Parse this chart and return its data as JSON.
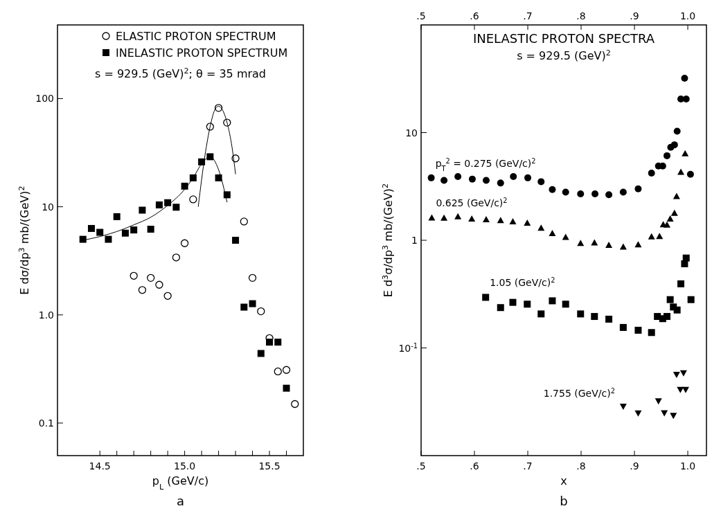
{
  "chart_data": [
    {
      "type": "scatter",
      "subtitle": "s = 929.5 (GeV)$^{2}$; θ = 35 mrad",
      "xlabel": "p$_{L}$ (GeV/c)",
      "ylabel": "E dσ/dp$^{3}$  mb/(GeV)$^{2}$",
      "log": "y",
      "grid": false,
      "legend": "top",
      "xlim": [
        14.25,
        15.7
      ],
      "ylim": [
        0.05,
        480
      ],
      "xticks": [
        {
          "value": 14.5,
          "label": "14.5"
        },
        {
          "value": 14.6,
          "label": null
        },
        {
          "value": 14.7,
          "label": null
        },
        {
          "value": 14.8,
          "label": null
        },
        {
          "value": 14.9,
          "label": null
        },
        {
          "value": 15.0,
          "label": "15.0"
        },
        {
          "value": 15.1,
          "label": null
        },
        {
          "value": 15.2,
          "label": null
        },
        {
          "value": 15.3,
          "label": null
        },
        {
          "value": 15.4,
          "label": null
        },
        {
          "value": 15.5,
          "label": "15.5"
        },
        {
          "value": 15.6,
          "label": null
        }
      ],
      "yticks": [
        0.1,
        {
          "value": 1,
          "label": "1.0"
        },
        10,
        100
      ],
      "annotations": [
        "a"
      ],
      "series": [
        {
          "name": "ELASTIC PROTON SPECTRUM",
          "marker": "circle-open",
          "color": "#000000",
          "x": [
            14.7,
            14.75,
            14.8,
            14.85,
            14.9,
            14.95,
            15.0,
            15.05,
            15.15,
            15.2,
            15.25,
            15.3,
            15.35,
            15.4,
            15.45,
            15.5,
            15.55,
            15.6,
            15.65
          ],
          "values": [
            2.3,
            1.7,
            2.2,
            1.9,
            1.5,
            3.4,
            4.6,
            11.7,
            55,
            82,
            60,
            28,
            7.3,
            2.2,
            1.08,
            0.61,
            0.3,
            0.31,
            0.15
          ]
        },
        {
          "name": "INELASTIC PROTON SPECTRUM",
          "marker": "square",
          "color": "#000000",
          "x": [
            14.4,
            14.45,
            14.5,
            14.55,
            14.6,
            14.65,
            14.7,
            14.75,
            14.8,
            14.85,
            14.9,
            14.95,
            15.0,
            15.05,
            15.1,
            15.15,
            15.2,
            15.25,
            15.3,
            15.35,
            15.4,
            15.45,
            15.5,
            15.55,
            15.6
          ],
          "values": [
            5.0,
            6.3,
            5.8,
            5.0,
            8.1,
            5.7,
            6.1,
            9.3,
            6.2,
            10.4,
            10.9,
            9.9,
            15.5,
            18.5,
            26,
            29,
            18.5,
            12.9,
            4.9,
            1.18,
            1.27,
            0.44,
            0.56,
            0.56,
            0.21
          ]
        },
        {
          "type": "line",
          "marker": "none",
          "color": "#000000",
          "x": [
            14.4,
            14.5,
            14.6,
            14.7,
            14.8,
            14.9,
            15.0,
            15.05,
            15.1,
            15.15,
            15.2,
            15.25
          ],
          "values": [
            4.9,
            5.3,
            5.9,
            6.8,
            8.0,
            10.3,
            14.5,
            18.5,
            25,
            29,
            22,
            11
          ]
        },
        {
          "type": "line",
          "marker": "none",
          "color": "#000000",
          "x": [
            15.08,
            15.12,
            15.15,
            15.18,
            15.2,
            15.22,
            15.25,
            15.28,
            15.3
          ],
          "values": [
            10,
            30,
            55,
            80,
            85,
            80,
            60,
            35,
            20
          ]
        }
      ]
    },
    {
      "type": "scatter",
      "title": "INELASTIC PROTON SPECTRA",
      "subtitle": "s = 929.5 (GeV)$^{2}$",
      "xlabel": "x",
      "ylabel": "E d$^{3}$σ/dp$^{3}$  mb/(GeV)$^{2}$",
      "log": "y",
      "grid": false,
      "legend": false,
      "xlim": [
        0.5,
        1.035
      ],
      "ylim": [
        0.01,
        100
      ],
      "x2lim": [
        0.5,
        1.035
      ],
      "xticks": [
        {
          "value": 0.5,
          "label": ".5"
        },
        {
          "value": 0.6,
          "label": ".6"
        },
        {
          "value": 0.7,
          "label": ".7"
        },
        {
          "value": 0.8,
          "label": ".8"
        },
        {
          "value": 0.9,
          "label": ".9"
        },
        {
          "value": 1.0,
          "label": "1.0"
        }
      ],
      "x2ticks": [
        {
          "value": 0.5,
          "label": ".5"
        },
        {
          "value": 0.6,
          "label": ".6"
        },
        {
          "value": 0.7,
          "label": ".7"
        },
        {
          "value": 0.8,
          "label": ".8"
        },
        {
          "value": 0.9,
          "label": ".9"
        },
        {
          "value": 1.0,
          "label": "1.0"
        }
      ],
      "yticks": [
        {
          "value": 0.1,
          "label": "10$^{-1}$"
        },
        1,
        10
      ],
      "annotations": [
        "b"
      ],
      "series": [
        {
          "name": "p$_{T}$$^{2}$ = 0.275 (GeV/c)$^{2}$",
          "marker": "circle",
          "color": "#000000",
          "x": [
            0.519,
            0.543,
            0.569,
            0.596,
            0.622,
            0.649,
            0.673,
            0.7,
            0.725,
            0.746,
            0.771,
            0.799,
            0.826,
            0.852,
            0.879,
            0.907,
            0.932,
            0.945,
            0.953,
            0.961,
            0.968,
            0.975,
            0.98,
            0.987,
            0.997,
            0.994,
            1.005
          ],
          "values": [
            3.8,
            3.6,
            3.9,
            3.7,
            3.6,
            3.4,
            3.9,
            3.8,
            3.5,
            2.96,
            2.8,
            2.7,
            2.7,
            2.65,
            2.8,
            3.0,
            4.2,
            4.9,
            4.9,
            6.1,
            7.3,
            7.7,
            10.3,
            20.5,
            20.5,
            32,
            4.1
          ]
        },
        {
          "name": "0.625 (GeV/c)$^{2}$",
          "marker": "triangle",
          "color": "#000000",
          "x": [
            0.52,
            0.543,
            0.569,
            0.595,
            0.622,
            0.649,
            0.672,
            0.699,
            0.725,
            0.746,
            0.771,
            0.799,
            0.825,
            0.852,
            0.879,
            0.907,
            0.932,
            0.947,
            0.954,
            0.961,
            0.967,
            0.975,
            0.979,
            0.987,
            0.995
          ],
          "values": [
            1.62,
            1.61,
            1.66,
            1.58,
            1.56,
            1.53,
            1.49,
            1.45,
            1.3,
            1.16,
            1.07,
            0.94,
            0.95,
            0.9,
            0.87,
            0.91,
            1.08,
            1.09,
            1.4,
            1.39,
            1.58,
            1.79,
            2.56,
            4.3,
            6.4
          ]
        },
        {
          "name": "1.05 (GeV/c)$^{2}$",
          "marker": "square",
          "color": "#000000",
          "x": [
            0.621,
            0.649,
            0.672,
            0.699,
            0.725,
            0.746,
            0.771,
            0.799,
            0.825,
            0.852,
            0.879,
            0.907,
            0.932,
            0.943,
            0.953,
            0.961,
            0.967,
            0.973,
            0.98,
            0.987,
            0.994,
            0.997,
            1.006
          ],
          "values": [
            0.295,
            0.237,
            0.265,
            0.255,
            0.207,
            0.274,
            0.255,
            0.207,
            0.196,
            0.185,
            0.155,
            0.146,
            0.139,
            0.196,
            0.187,
            0.196,
            0.281,
            0.24,
            0.225,
            0.394,
            0.605,
            0.684,
            0.281
          ]
        },
        {
          "name": "1.755 (GeV/c)$^{2}$",
          "marker": "triangle-down",
          "color": "#000000",
          "x": [
            0.879,
            0.907,
            0.945,
            0.956,
            0.973,
            0.979,
            0.986,
            0.992,
            0.996
          ],
          "values": [
            0.0286,
            0.0248,
            0.0321,
            0.0249,
            0.0235,
            0.0565,
            0.041,
            0.0585,
            0.041
          ]
        }
      ]
    }
  ]
}
